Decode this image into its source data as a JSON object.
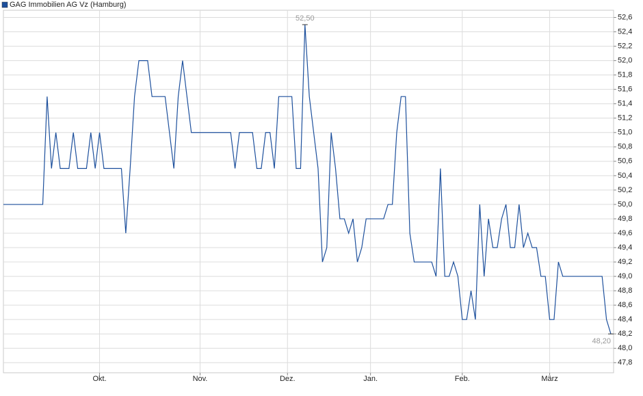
{
  "chart_data": {
    "type": "line",
    "series": [
      {
        "name": "GAG Immobilien AG Vz (Hamburg)",
        "color": "#1c4f9c",
        "values": [
          50.0,
          50.0,
          50.0,
          50.0,
          50.0,
          50.0,
          50.0,
          50.0,
          50.0,
          50.0,
          51.5,
          50.5,
          51.0,
          50.5,
          50.5,
          50.5,
          51.0,
          50.5,
          50.5,
          50.5,
          51.0,
          50.5,
          51.0,
          50.5,
          50.5,
          50.5,
          50.5,
          50.5,
          49.6,
          50.5,
          51.5,
          52.0,
          52.0,
          52.0,
          51.5,
          51.5,
          51.5,
          51.5,
          51.0,
          50.5,
          51.5,
          52.0,
          51.5,
          51.0,
          51.0,
          51.0,
          51.0,
          51.0,
          51.0,
          51.0,
          51.0,
          51.0,
          51.0,
          50.5,
          51.0,
          51.0,
          51.0,
          51.0,
          50.5,
          50.5,
          51.0,
          51.0,
          50.5,
          51.5,
          51.5,
          51.5,
          51.5,
          50.5,
          50.5,
          52.5,
          51.5,
          51.0,
          50.5,
          49.2,
          49.4,
          51.0,
          50.5,
          49.8,
          49.8,
          49.6,
          49.8,
          49.2,
          49.4,
          49.8,
          49.8,
          49.8,
          49.8,
          49.8,
          50.0,
          50.0,
          51.0,
          51.5,
          51.5,
          49.6,
          49.2,
          49.2,
          49.2,
          49.2,
          49.2,
          49.0,
          50.5,
          49.0,
          49.0,
          49.2,
          49.0,
          48.4,
          48.4,
          48.8,
          48.4,
          50.0,
          49.0,
          49.8,
          49.4,
          49.4,
          49.8,
          50.0,
          49.4,
          49.4,
          50.0,
          49.4,
          49.6,
          49.4,
          49.4,
          49.0,
          49.0,
          48.4,
          48.4,
          49.2,
          49.0,
          49.0,
          49.0,
          49.0,
          49.0,
          49.0,
          49.0,
          49.0,
          49.0,
          49.0,
          48.4,
          48.2
        ]
      }
    ],
    "xlim": [
      0,
      139
    ],
    "xticks": [
      {
        "value": 22,
        "label": "Okt."
      },
      {
        "value": 45,
        "label": "Nov."
      },
      {
        "value": 65,
        "label": "Dez."
      },
      {
        "value": 84,
        "label": "Jan."
      },
      {
        "value": 105,
        "label": "Feb."
      },
      {
        "value": 125,
        "label": "März"
      }
    ],
    "ylim": [
      47.66,
      52.7
    ],
    "yticks": [
      {
        "value": 47.8,
        "label": "47,8"
      },
      {
        "value": 48.0,
        "label": "48,0"
      },
      {
        "value": 48.2,
        "label": "48,2"
      },
      {
        "value": 48.4,
        "label": "48,4"
      },
      {
        "value": 48.6,
        "label": "48,6"
      },
      {
        "value": 48.8,
        "label": "48,8"
      },
      {
        "value": 49.0,
        "label": "49,0"
      },
      {
        "value": 49.2,
        "label": "49,2"
      },
      {
        "value": 49.4,
        "label": "49,4"
      },
      {
        "value": 49.6,
        "label": "49,6"
      },
      {
        "value": 49.8,
        "label": "49,8"
      },
      {
        "value": 50.0,
        "label": "50,0"
      },
      {
        "value": 50.2,
        "label": "50,2"
      },
      {
        "value": 50.4,
        "label": "50,4"
      },
      {
        "value": 50.6,
        "label": "50,6"
      },
      {
        "value": 50.8,
        "label": "50,8"
      },
      {
        "value": 51.0,
        "label": "51,0"
      },
      {
        "value": 51.2,
        "label": "51,2"
      },
      {
        "value": 51.4,
        "label": "51,4"
      },
      {
        "value": 51.6,
        "label": "51,6"
      },
      {
        "value": 51.8,
        "label": "51,8"
      },
      {
        "value": 52.0,
        "label": "52,0"
      },
      {
        "value": 52.2,
        "label": "52,2"
      },
      {
        "value": 52.4,
        "label": "52,4"
      },
      {
        "value": 52.6,
        "label": "52,6"
      }
    ],
    "grid": true,
    "legend": "top-left",
    "annotations": [
      {
        "x": 69,
        "y": 52.5,
        "label": "52,50"
      },
      {
        "x": 139,
        "y": 48.2,
        "label": "48,20"
      }
    ]
  }
}
